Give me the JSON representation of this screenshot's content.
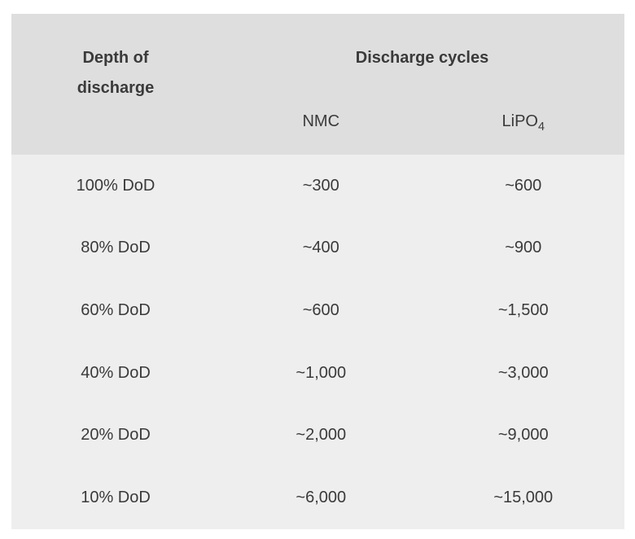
{
  "colors": {
    "page_background": "#ffffff",
    "header_background": "#dedede",
    "body_background": "#eeeeee",
    "text": "#3a3a3a"
  },
  "table": {
    "header": {
      "row_label_line1": "Depth of",
      "row_label_line2": "discharge",
      "group_label": "Discharge cycles",
      "series1_label": "NMC",
      "series2_label_base": "LiPO",
      "series2_label_subscript": "4"
    },
    "rows": [
      {
        "dod": "100% DoD",
        "nmc": "~300",
        "lipo4": "~600"
      },
      {
        "dod": "80% DoD",
        "nmc": "~400",
        "lipo4": "~900"
      },
      {
        "dod": "60% DoD",
        "nmc": "~600",
        "lipo4": "~1,500"
      },
      {
        "dod": "40% DoD",
        "nmc": "~1,000",
        "lipo4": "~3,000"
      },
      {
        "dod": "20% DoD",
        "nmc": "~2,000",
        "lipo4": "~9,000"
      },
      {
        "dod": "10% DoD",
        "nmc": "~6,000",
        "lipo4": "~15,000"
      }
    ]
  },
  "chart_data": {
    "type": "table",
    "columns": [
      "Depth of discharge",
      "Discharge cycles (NMC)",
      "Discharge cycles (LiPO4)"
    ],
    "rows": [
      [
        "100% DoD",
        "~300",
        "~600"
      ],
      [
        "80% DoD",
        "~400",
        "~900"
      ],
      [
        "60% DoD",
        "~600",
        "~1,500"
      ],
      [
        "40% DoD",
        "~1,000",
        "~3,000"
      ],
      [
        "20% DoD",
        "~2,000",
        "~9,000"
      ],
      [
        "10% DoD",
        "~6,000",
        "~15,000"
      ]
    ],
    "numeric": {
      "dod_percent": [
        100,
        80,
        60,
        40,
        20,
        10
      ],
      "nmc_cycles_approx": [
        300,
        400,
        600,
        1000,
        2000,
        6000
      ],
      "lipo4_cycles_approx": [
        600,
        900,
        1500,
        3000,
        9000,
        15000
      ]
    },
    "layout": {
      "header_group_spans_columns": [
        2,
        3
      ],
      "grid": "off",
      "cell_alignment": "center"
    }
  }
}
